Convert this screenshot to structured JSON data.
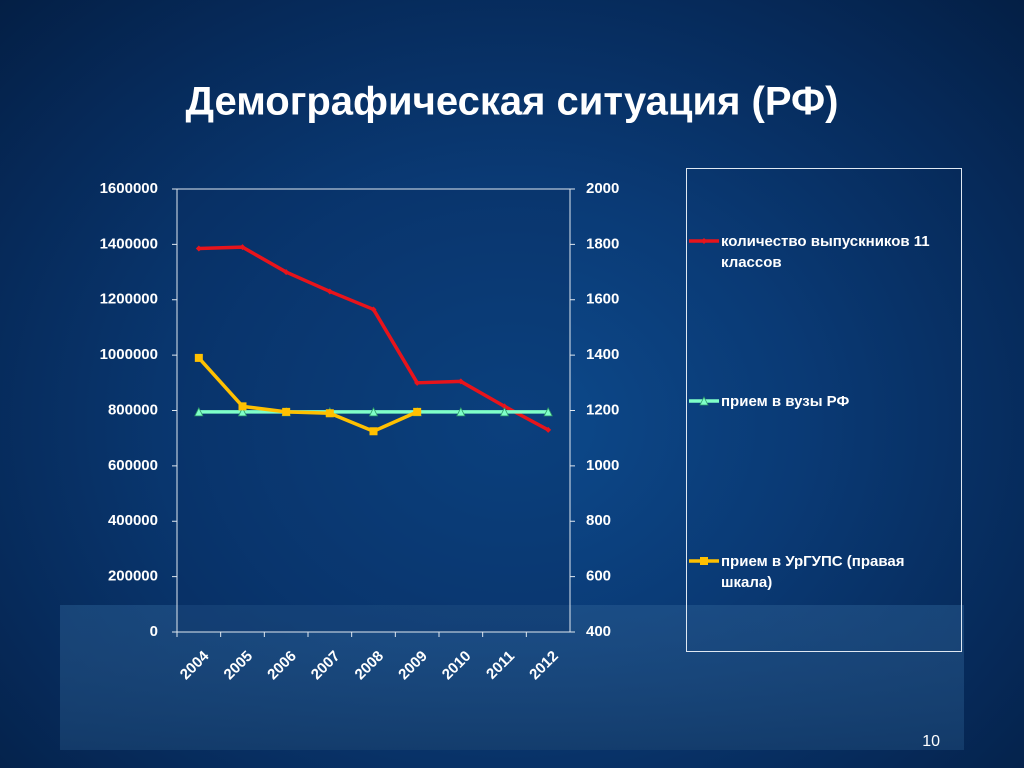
{
  "chart_data": {
    "type": "line",
    "title": "Демографическая ситуация (РФ)",
    "categories": [
      "2004",
      "2005",
      "2006",
      "2007",
      "2008",
      "2009",
      "2010",
      "2011",
      "2012"
    ],
    "series": [
      {
        "name": "количество выпускников 11 классов",
        "color": "#e8141b",
        "marker": "diamond",
        "values": [
          1385000,
          1390000,
          1300000,
          1230000,
          1165000,
          900000,
          905000,
          815000,
          730000
        ]
      },
      {
        "name": "прием в вузы РФ",
        "color": "#7fffc8",
        "marker": "triangle",
        "values": [
          795000,
          795000,
          795000,
          795000,
          795000,
          795000,
          795000,
          795000,
          795000
        ]
      },
      {
        "name": "прием в УрГУПС (правая шкала)",
        "color": "#ffc000",
        "marker": "square",
        "axis": "y2",
        "values": [
          1390,
          1215,
          1195,
          1190,
          1125,
          1195,
          null,
          null,
          null
        ]
      }
    ],
    "ylim": [
      0,
      1600000
    ],
    "yticks": [
      0,
      200000,
      400000,
      600000,
      800000,
      1000000,
      1200000,
      1400000,
      1600000
    ],
    "y2lim": [
      400,
      2000
    ],
    "y2ticks": [
      400,
      600,
      800,
      1000,
      1200,
      1400,
      1600,
      1800,
      2000
    ],
    "legend": "right"
  },
  "slide_number": "10"
}
